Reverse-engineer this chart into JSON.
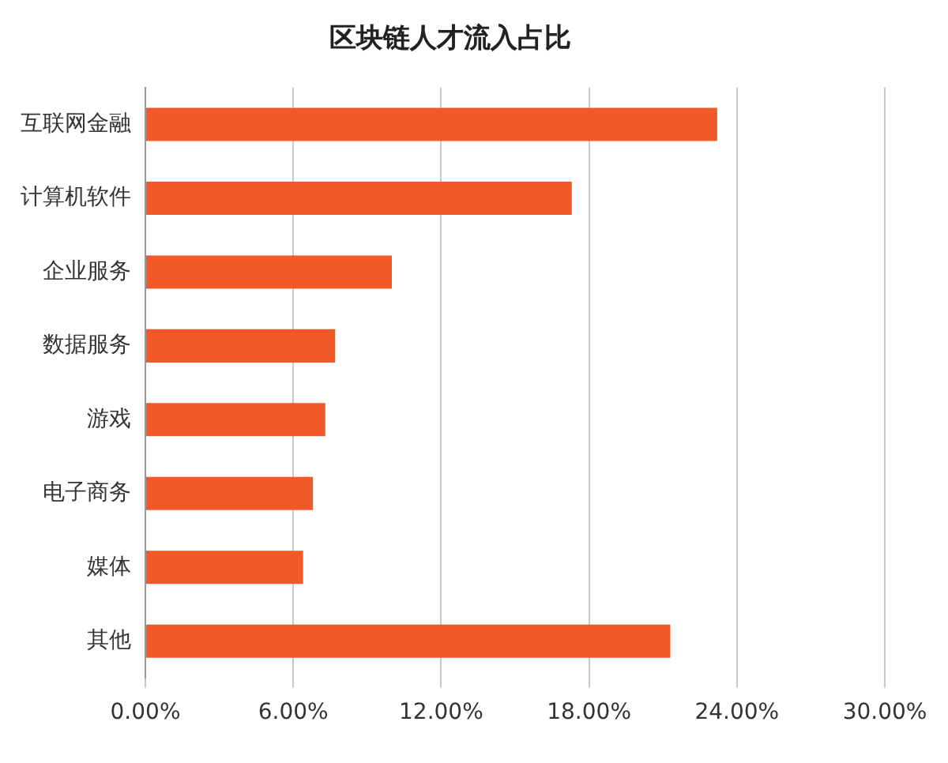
{
  "chart_data": {
    "type": "bar",
    "orientation": "horizontal",
    "title": "区块链人才流入占比",
    "categories": [
      "互联网金融",
      "计算机软件",
      "企业服务",
      "数据服务",
      "游戏",
      "电子商务",
      "媒体",
      "其他"
    ],
    "values": [
      23.2,
      17.3,
      10.0,
      7.7,
      7.3,
      6.8,
      6.4,
      21.3
    ],
    "color": "#f05a28",
    "xlim": [
      0,
      30
    ],
    "xticks": [
      {
        "value": 0,
        "label": "0.00%"
      },
      {
        "value": 6,
        "label": "6.00%"
      },
      {
        "value": 12,
        "label": "12.00%"
      },
      {
        "value": 18,
        "label": "18.00%"
      },
      {
        "value": 24,
        "label": "24.00%"
      },
      {
        "value": 30,
        "label": "30.00%"
      }
    ],
    "grid": "x",
    "legend": false
  }
}
